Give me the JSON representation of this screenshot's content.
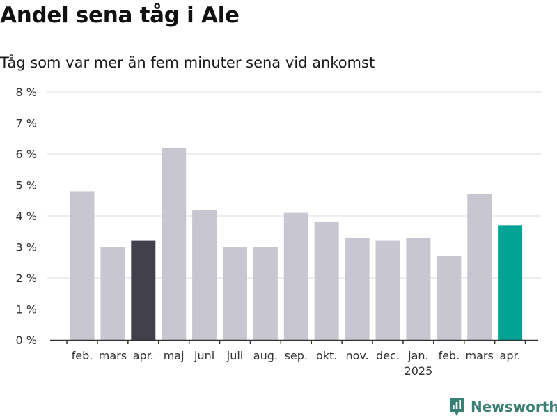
{
  "chart_data": {
    "type": "bar",
    "title": "Andel sena tåg i Ale",
    "subtitle": "Tåg som var mer än fem minuter sena vid ankomst",
    "categories": [
      "feb.",
      "mars",
      "apr.",
      "maj",
      "juni",
      "juli",
      "aug.",
      "sep.",
      "okt.",
      "nov.",
      "dec.",
      "jan.",
      "feb.",
      "mars",
      "apr."
    ],
    "year_label": "2025",
    "values": [
      4.8,
      3.0,
      3.2,
      6.2,
      4.2,
      3.0,
      3.0,
      4.1,
      3.8,
      3.3,
      3.2,
      3.3,
      2.7,
      4.7,
      3.7
    ],
    "bar_colors": [
      "#c8c7d1",
      "#c8c7d1",
      "#41404b",
      "#c8c7d1",
      "#c8c7d1",
      "#c8c7d1",
      "#c8c7d1",
      "#c8c7d1",
      "#c8c7d1",
      "#c8c7d1",
      "#c8c7d1",
      "#c8c7d1",
      "#c8c7d1",
      "#c8c7d1",
      "#00a394"
    ],
    "y_ticks": [
      "0 %",
      "1 %",
      "2 %",
      "3 %",
      "4 %",
      "5 %",
      "6 %",
      "7 %",
      "8 %"
    ],
    "ylim": [
      0,
      8
    ],
    "grid": true,
    "xlabel": "",
    "ylabel": ""
  },
  "brand": {
    "name": "Newsworthy",
    "color": "#3a7f76"
  }
}
